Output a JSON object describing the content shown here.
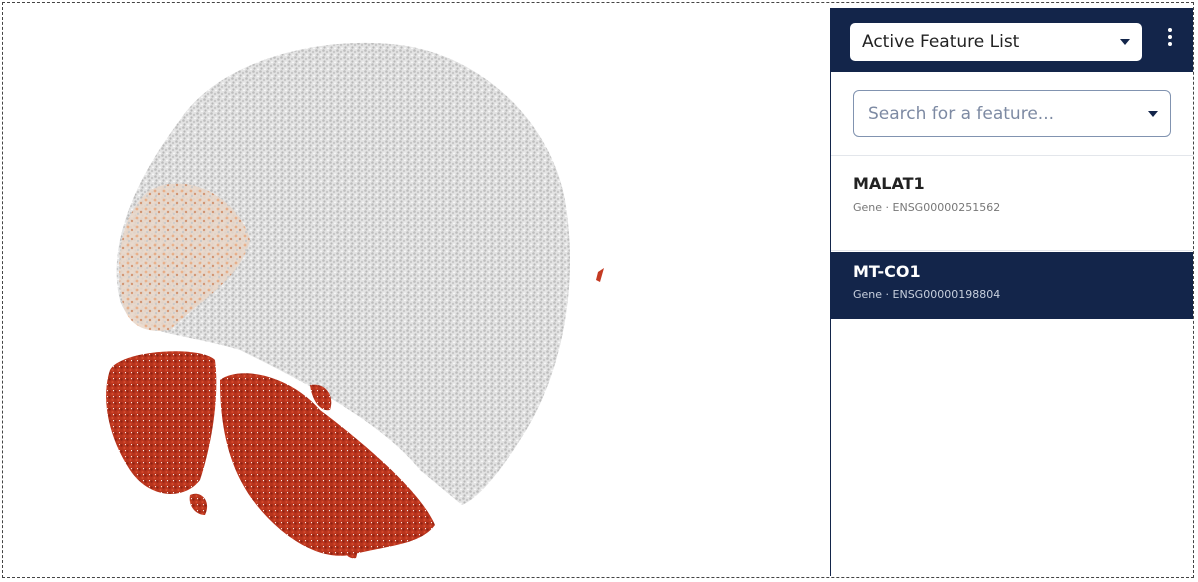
{
  "dropdown": {
    "label": "Active Feature List"
  },
  "search": {
    "placeholder": "Search for a feature..."
  },
  "features": [
    {
      "name": "MALAT1",
      "detail": "Gene · ENSG00000251562"
    },
    {
      "name": "MT-CO1",
      "detail": "Gene · ENSG00000198804"
    }
  ]
}
